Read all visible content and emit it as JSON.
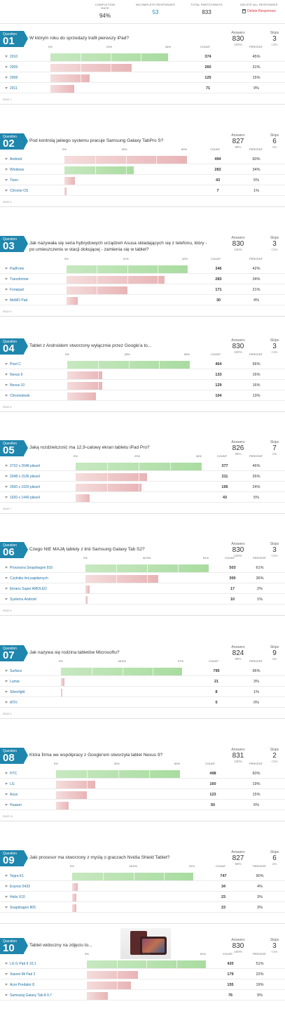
{
  "summary": {
    "completion_rate_label": "COMPLETION RATE",
    "completion_rate": "94%",
    "incomplete_label": "INCOMPLETE RESPONSES",
    "incomplete": "53",
    "total_label": "TOTAL PARTICIPANTS",
    "total": "833",
    "delete_label": "DELETE ALL RESPONSES",
    "delete_button": "Delete Responses"
  },
  "labels": {
    "question_word": "Question",
    "answers": "Answers",
    "skips": "Skips",
    "count": "COUNT",
    "percent": "PERCENT"
  },
  "colors": {
    "badge": "#1f86ad",
    "green_bar": "#a9dca0",
    "pink_bar": "#e8b4b6",
    "link": "#1f6fa0",
    "delete": "#d9363e"
  },
  "questions": [
    {
      "num": "01",
      "text": "W którym roku do sprzedaży trafił pierwszy iPad?",
      "answers": "830",
      "answers_pct": "100%",
      "skips": "3",
      "skips_pct": "<1%",
      "axis": [
        "0%",
        "23%",
        "46%"
      ],
      "axis_max": 46,
      "page": "PAGE 2",
      "rows": [
        {
          "label": "2010",
          "count": "374",
          "percent": "45%",
          "value": 45,
          "top": true
        },
        {
          "label": "2009",
          "count": "260",
          "percent": "31%",
          "value": 31
        },
        {
          "label": "2008",
          "count": "125",
          "percent": "15%",
          "value": 15
        },
        {
          "label": "2011",
          "count": "71",
          "percent": "9%",
          "value": 9
        }
      ]
    },
    {
      "num": "02",
      "text": "Pod kontrolą jakiego systemu pracuje Samsung Galaxy TabPro S?",
      "answers": "827",
      "answers_pct": "99%",
      "skips": "6",
      "skips_pct": "1%",
      "axis": [
        "0%",
        "30%",
        "60%"
      ],
      "axis_max": 60,
      "page": "PAGE 4",
      "rows": [
        {
          "label": "Android",
          "count": "494",
          "percent": "60%",
          "value": 60
        },
        {
          "label": "Windows",
          "count": "283",
          "percent": "34%",
          "value": 34,
          "top": true
        },
        {
          "label": "Tizen",
          "count": "43",
          "percent": "5%",
          "value": 5
        },
        {
          "label": "Chrome OS",
          "count": "7",
          "percent": "1%",
          "value": 1
        }
      ]
    },
    {
      "num": "03",
      "text": "Jak nazywała się seria hybrydowych urządzeń Asusa składających się z telefonu, który - po umieszczeniu w stacji dokującej - zamienia się w tablet?",
      "answers": "830",
      "answers_pct": "100%",
      "skips": "3",
      "skips_pct": "<1%",
      "axis": [
        "0%",
        "21%",
        "42%"
      ],
      "axis_max": 42,
      "page": "PAGE 5",
      "rows": [
        {
          "label": "PadFone",
          "count": "346",
          "percent": "42%",
          "value": 42,
          "top": true
        },
        {
          "label": "Transformer",
          "count": "283",
          "percent": "34%",
          "value": 34
        },
        {
          "label": "Fonepad",
          "count": "171",
          "percent": "21%",
          "value": 21
        },
        {
          "label": "MeMO Pad",
          "count": "30",
          "percent": "4%",
          "value": 4
        }
      ]
    },
    {
      "num": "04",
      "text": "Tablet z Androidem stworzony wyłącznie przez Google'a to...",
      "answers": "830",
      "answers_pct": "100%",
      "skips": "3",
      "skips_pct": "<1%",
      "axis": [
        "0%",
        "28%",
        "56%"
      ],
      "axis_max": 56,
      "page": "PAGE 6",
      "rows": [
        {
          "label": "Pixel C",
          "count": "464",
          "percent": "56%",
          "value": 56,
          "top": true
        },
        {
          "label": "Nexus 9",
          "count": "133",
          "percent": "16%",
          "value": 16
        },
        {
          "label": "Nexus 10",
          "count": "129",
          "percent": "16%",
          "value": 16
        },
        {
          "label": "Chromebook",
          "count": "104",
          "percent": "13%",
          "value": 13
        }
      ]
    },
    {
      "num": "05",
      "text": "Jaką rozdzielczość ma 12,9-calowy ekran tabletu iPad Pro?",
      "answers": "826",
      "answers_pct": "99%",
      "skips": "7",
      "skips_pct": "1%",
      "axis": [
        "0%",
        "23%",
        "46%"
      ],
      "axis_max": 46,
      "page": "PAGE 7",
      "rows": [
        {
          "label": "2732 x 2048 pikseli",
          "count": "377",
          "percent": "46%",
          "value": 46,
          "top": true
        },
        {
          "label": "2048 x 1536 pikseli",
          "count": "211",
          "percent": "26%",
          "value": 26
        },
        {
          "label": "2560 x 1920 pikseli",
          "count": "195",
          "percent": "24%",
          "value": 24
        },
        {
          "label": "1920 x 1440 pikseli",
          "count": "43",
          "percent": "5%",
          "value": 5
        }
      ]
    },
    {
      "num": "06",
      "text": "Czego NIE MAJĄ tablety z linii Samsung Galaxy Tab S2?",
      "answers": "830",
      "answers_pct": "100%",
      "skips": "3",
      "skips_pct": "<1%",
      "axis": [
        "0%",
        "30.5%",
        "61%"
      ],
      "axis_max": 61,
      "page": "PAGE 8",
      "rows": [
        {
          "label": "Procesora Snapdragon 810",
          "count": "503",
          "percent": "61%",
          "value": 61,
          "top": true
        },
        {
          "label": "Czytnika linii papilarnych",
          "count": "300",
          "percent": "36%",
          "value": 36
        },
        {
          "label": "Ekranu Super AMOLED",
          "count": "17",
          "percent": "2%",
          "value": 2
        },
        {
          "label": "Systemu Android",
          "count": "10",
          "percent": "1%",
          "value": 1
        }
      ]
    },
    {
      "num": "07",
      "text": "Jak nazywa się rodzina tabletów Microsoftu?",
      "answers": "824",
      "answers_pct": "99%",
      "skips": "9",
      "skips_pct": "1%",
      "axis": [
        "0%",
        "48.5%",
        "97%"
      ],
      "axis_max": 97,
      "page": "PAGE 9",
      "rows": [
        {
          "label": "Surface",
          "count": "795",
          "percent": "96%",
          "value": 96,
          "top": true
        },
        {
          "label": "Lumia",
          "count": "21",
          "percent": "3%",
          "value": 3
        },
        {
          "label": "Silverlight",
          "count": "8",
          "percent": "1%",
          "value": 1
        },
        {
          "label": "ATIV",
          "count": "0",
          "percent": "0%",
          "value": 0
        }
      ]
    },
    {
      "num": "08",
      "text": "Która firma we współpracy z Google'em stworzyła tablet Nexus 9?",
      "answers": "831",
      "answers_pct": "100%",
      "skips": "2",
      "skips_pct": "<1%",
      "axis": [
        "0%",
        "30%",
        "60%"
      ],
      "axis_max": 60,
      "page": "PAGE 10",
      "rows": [
        {
          "label": "HTC",
          "count": "498",
          "percent": "60%",
          "value": 60,
          "top": true
        },
        {
          "label": "LG",
          "count": "160",
          "percent": "19%",
          "value": 19
        },
        {
          "label": "Asus",
          "count": "123",
          "percent": "15%",
          "value": 15
        },
        {
          "label": "Huawei",
          "count": "50",
          "percent": "6%",
          "value": 6
        }
      ]
    },
    {
      "num": "09",
      "text": "Jaki procesor ma stworzony z myślą o graczach Nvidia Shield Tablet?",
      "answers": "827",
      "answers_pct": "99%",
      "skips": "6",
      "skips_pct": "1%",
      "axis": [
        "0%",
        "45.5%",
        "91%"
      ],
      "axis_max": 91,
      "page": "",
      "rows": [
        {
          "label": "Tegra K1",
          "count": "747",
          "percent": "90%",
          "value": 90,
          "top": true
        },
        {
          "label": "Exynos 5433",
          "count": "34",
          "percent": "4%",
          "value": 4
        },
        {
          "label": "Helio X10",
          "count": "23",
          "percent": "3%",
          "value": 3
        },
        {
          "label": "Snapdragon 805",
          "count": "23",
          "percent": "3%",
          "value": 3
        }
      ]
    },
    {
      "num": "10",
      "text": "Tablet widoczny na zdjęciu to...",
      "answers": "830",
      "answers_pct": "100%",
      "skips": "3",
      "skips_pct": "<1%",
      "axis": [
        "0%",
        "25.5%",
        "51%"
      ],
      "axis_max": 51,
      "page": "",
      "image": true,
      "rows": [
        {
          "label": "LG G Pad II 10.1",
          "count": "420",
          "percent": "51%",
          "value": 51,
          "top": true
        },
        {
          "label": "Xiaomi Mi Pad 2",
          "count": "179",
          "percent": "22%",
          "value": 22
        },
        {
          "label": "Acer Predator 8",
          "count": "155",
          "percent": "19%",
          "value": 19
        },
        {
          "label": "Samsung Galaxy Tab A 9.7",
          "count": "76",
          "percent": "9%",
          "value": 9
        }
      ]
    }
  ]
}
